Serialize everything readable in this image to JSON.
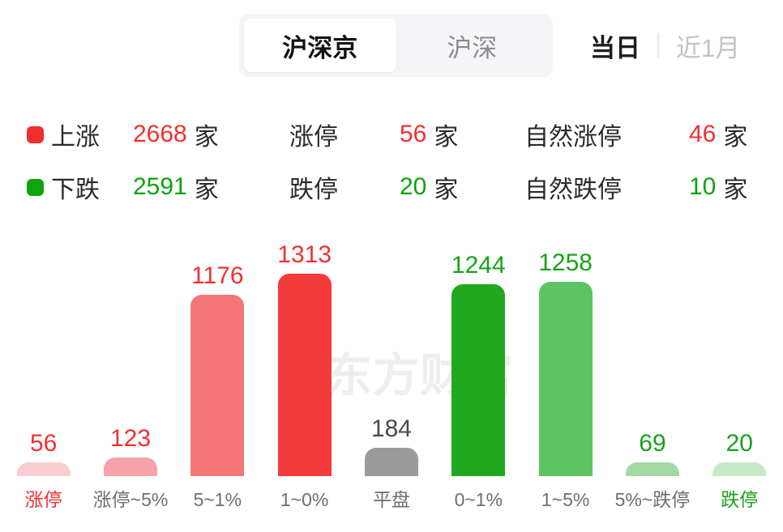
{
  "header": {
    "market_tabs": [
      {
        "label": "沪深京",
        "selected": true
      },
      {
        "label": "沪深",
        "selected": false
      }
    ],
    "period_tabs": [
      {
        "label": "当日",
        "selected": true
      },
      {
        "label": "近1月",
        "selected": false
      }
    ]
  },
  "summary_rows": [
    {
      "name": "上涨",
      "count": "2668",
      "unit": "家",
      "limit_label": "涨停",
      "limit_count": "56",
      "limit_unit": "家",
      "natural_label": "自然涨停",
      "natural_count": "46",
      "natural_unit": "家",
      "swatch_color": "#F12C2C",
      "number_color": "#F2302F"
    },
    {
      "name": "下跌",
      "count": "2591",
      "unit": "家",
      "limit_label": "跌停",
      "limit_count": "20",
      "limit_unit": "家",
      "natural_label": "自然跌停",
      "natural_count": "10",
      "natural_unit": "家",
      "swatch_color": "#0EA50E",
      "number_color": "#0CA30C"
    }
  ],
  "chart_data": {
    "type": "bar",
    "categories": [
      "涨停",
      "涨停~5%",
      "5~1%",
      "1~0%",
      "平盘",
      "0~1%",
      "1~5%",
      "5%~跌停",
      "跌停"
    ],
    "values": [
      56,
      123,
      1176,
      1313,
      184,
      1244,
      1258,
      69,
      20
    ],
    "ylim": [
      0,
      1313
    ],
    "grid": false,
    "legend_position": "none",
    "bar_colors": [
      "#F8CDD2",
      "#F5A3A8",
      "#F57678",
      "#F43B3C",
      "#9B9B9B",
      "#21A81F",
      "#5EC463",
      "#A2D9A2",
      "#C8E9C6"
    ],
    "value_label_colors": [
      "#F2302F",
      "#F2302F",
      "#F2302F",
      "#F2302F",
      "#4A4A4A",
      "#16A316",
      "#16A316",
      "#16A316",
      "#16A316"
    ],
    "category_label_colors": [
      "#F2302F",
      "#6E6E6E",
      "#6E6E6E",
      "#6E6E6E",
      "#6E6E6E",
      "#6E6E6E",
      "#6E6E6E",
      "#6E6E6E",
      "#16A316"
    ]
  },
  "watermark": "东方财富",
  "colors": {
    "up_red": "#F2302F",
    "down_green": "#0EA50E",
    "flat_gray": "#9B9B9B"
  }
}
